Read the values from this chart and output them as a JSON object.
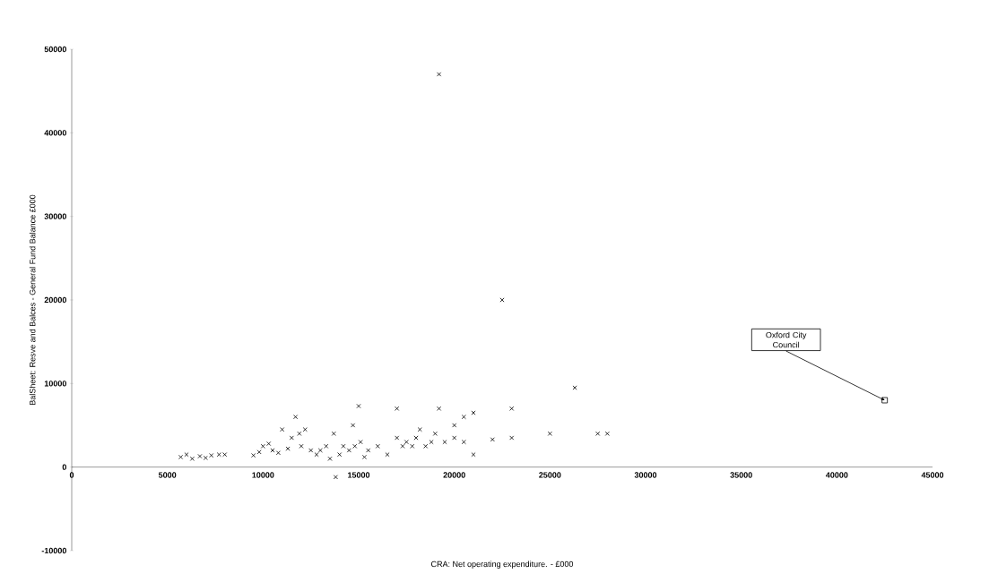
{
  "chart_data": {
    "type": "scatter",
    "xlabel": "CRA:    Net operating expenditure. - £000",
    "ylabel": "BalSheet: Resve and Balces - General Fund Balance £000",
    "xlim": [
      0,
      45000
    ],
    "ylim": [
      -10000,
      50000
    ],
    "xticks": [
      0,
      5000,
      10000,
      15000,
      20000,
      25000,
      30000,
      35000,
      40000,
      45000
    ],
    "yticks": [
      -10000,
      0,
      10000,
      20000,
      30000,
      40000,
      50000
    ],
    "grid": false,
    "marker": "cross",
    "annotations": [
      {
        "text": "Oxford City Council",
        "x": 42500,
        "y": 8000
      }
    ],
    "series": [
      {
        "color": "#000000",
        "x": [
          5700,
          6000,
          6300,
          6700,
          7000,
          7300,
          7700,
          8000,
          9500,
          9800,
          10000,
          10300,
          10500,
          10800,
          11000,
          11300,
          11500,
          11700,
          11900,
          12000,
          12200,
          12500,
          12800,
          13000,
          13300,
          13500,
          13700,
          13800,
          14000,
          14200,
          14500,
          14700,
          14800,
          15000,
          15100,
          15300,
          15500,
          16000,
          16500,
          17000,
          17000,
          17300,
          17500,
          17800,
          18000,
          18200,
          18500,
          18800,
          19000,
          19200,
          19200,
          19500,
          20000,
          20000,
          20500,
          20500,
          21000,
          21000,
          22000,
          22500,
          23000,
          23000,
          25000,
          26300,
          27500,
          28000
        ],
        "values": [
          1200,
          1500,
          1000,
          1300,
          1100,
          1400,
          1500,
          1500,
          1400,
          1800,
          2500,
          2800,
          2000,
          1700,
          4500,
          2200,
          3500,
          6000,
          4000,
          2500,
          4500,
          2000,
          1500,
          2000,
          2500,
          1000,
          4000,
          -1200,
          1500,
          2500,
          2000,
          5000,
          2500,
          7300,
          3000,
          1200,
          2000,
          2500,
          1500,
          3500,
          7000,
          2500,
          3000,
          2500,
          3500,
          4500,
          2500,
          3000,
          4000,
          7000,
          47000,
          3000,
          5000,
          3500,
          6000,
          3000,
          6500,
          1500,
          3300,
          20000,
          7000,
          3500,
          4000,
          9500,
          4000,
          4000
        ]
      },
      {
        "color": "#000000",
        "marker": "square",
        "x": [
          42500
        ],
        "values": [
          8000
        ]
      }
    ]
  }
}
